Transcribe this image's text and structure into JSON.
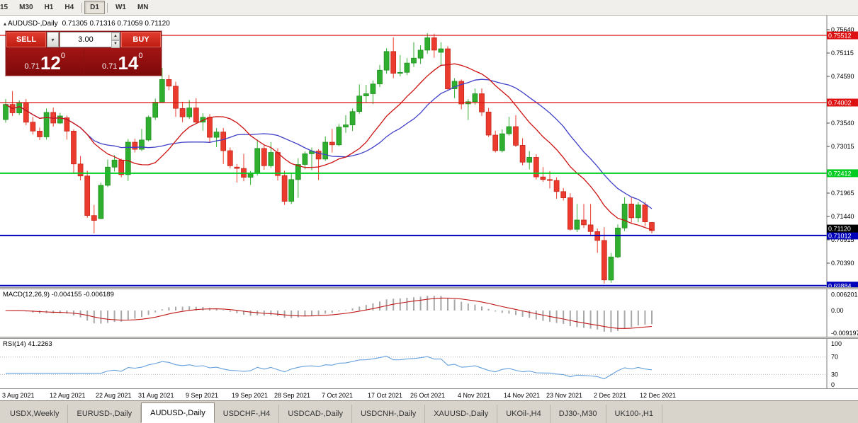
{
  "toolbar": {
    "timeframes": [
      {
        "label": "15"
      },
      {
        "label": "M30"
      },
      {
        "label": "H1"
      },
      {
        "label": "H4",
        "sep_after": true
      },
      {
        "label": "D1",
        "active": true,
        "sep_after": true
      },
      {
        "label": "W1"
      },
      {
        "label": "MN"
      }
    ]
  },
  "chart": {
    "title": "AUDUSD-,Daily",
    "ohlc_text": "0.71305 0.71316 0.71059 0.71120"
  },
  "trade_panel": {
    "sell_label": "SELL",
    "buy_label": "BUY",
    "volume": "3.00",
    "sell_price": {
      "prefix": "0.71",
      "big": "12",
      "sup": "0"
    },
    "buy_price": {
      "prefix": "0.71",
      "big": "14",
      "sup": "0"
    }
  },
  "macd": {
    "label": "MACD(12,26,9) -0.004155 -0.006189",
    "axis": [
      "0.006201",
      "0.00",
      "-0.009197"
    ]
  },
  "rsi": {
    "label": "RSI(14) 41.2263",
    "axis": [
      100,
      70,
      30,
      0
    ],
    "levels": [
      70,
      30
    ]
  },
  "date_axis": [
    {
      "label": "3 Aug 2021",
      "i": 0
    },
    {
      "label": "12 Aug 2021",
      "i": 7
    },
    {
      "label": "22 Aug 2021",
      "i": 13.7
    },
    {
      "label": "31 Aug 2021",
      "i": 20
    },
    {
      "label": "9 Sep 2021",
      "i": 27
    },
    {
      "label": "19 Sep 2021",
      "i": 33.7
    },
    {
      "label": "28 Sep 2021",
      "i": 40
    },
    {
      "label": "7 Oct 2021",
      "i": 47
    },
    {
      "label": "17 Oct 2021",
      "i": 53.7
    },
    {
      "label": "26 Oct 2021",
      "i": 60
    },
    {
      "label": "4 Nov 2021",
      "i": 67
    },
    {
      "label": "14 Nov 2021",
      "i": 73.7
    },
    {
      "label": "23 Nov 2021",
      "i": 80
    },
    {
      "label": "2 Dec 2021",
      "i": 87
    },
    {
      "label": "12 Dec 2021",
      "i": 93.7
    }
  ],
  "tabs": [
    {
      "label": "USDX,Weekly"
    },
    {
      "label": "EURUSD-,Daily"
    },
    {
      "label": "AUDUSD-,Daily",
      "active": true
    },
    {
      "label": "USDCHF-,H4"
    },
    {
      "label": "USDCAD-,Daily"
    },
    {
      "label": "USDCNH-,Daily"
    },
    {
      "label": "XAUUSD-,Daily"
    },
    {
      "label": "UKOil-,H4"
    },
    {
      "label": "DJ30-,M30"
    },
    {
      "label": "UK100-,H1"
    }
  ],
  "colors": {
    "bull": "#2fae2f",
    "bull_stroke": "#1d8a1d",
    "bear": "#ea3b2e",
    "bear_stroke": "#c02114",
    "ma_fast": "#cc1111",
    "ma_slow": "#4040c8",
    "macd_hist": "#a8a8a8",
    "macd_signal": "#c01818",
    "rsi": "#64a0dc",
    "hline_red": "#dd1111",
    "hline_green": "#00cc22",
    "hline_blue": "#0000bb"
  },
  "chart_data": {
    "type": "candlestick",
    "symbol": "AUDUSD-",
    "timeframe": "Daily",
    "last_ohlc": {
      "open": 0.71305,
      "high": 0.71316,
      "low": 0.71059,
      "close": 0.7112
    },
    "current_price": 0.7112,
    "y_ticks": [
      0.7564,
      0.75115,
      0.7459,
      0.7354,
      0.73015,
      0.71965,
      0.7144,
      0.70915,
      0.7039
    ],
    "hlines": [
      {
        "price": 0.75512,
        "color": "#dd1111",
        "width": 1.3
      },
      {
        "price": 0.74002,
        "color": "#dd1111",
        "width": 1.3
      },
      {
        "price": 0.72412,
        "color": "#00cc22",
        "width": 2
      },
      {
        "price": 0.71012,
        "color": "#0000bb",
        "width": 2
      },
      {
        "price": 0.69884,
        "color": "#0000bb",
        "width": 2
      }
    ],
    "indicators": {
      "ma_fast": "red MA",
      "ma_slow": "blue MA",
      "macd": "12,26,9",
      "rsi": 14
    },
    "ohlc": [
      [
        0.7362,
        0.7408,
        0.7355,
        0.7396
      ],
      [
        0.7396,
        0.7426,
        0.737,
        0.7377
      ],
      [
        0.7377,
        0.7405,
        0.7372,
        0.74
      ],
      [
        0.74,
        0.7408,
        0.7349,
        0.7356
      ],
      [
        0.7356,
        0.7368,
        0.7328,
        0.7336
      ],
      [
        0.7336,
        0.7344,
        0.7316,
        0.7323
      ],
      [
        0.7323,
        0.7387,
        0.7317,
        0.7378
      ],
      [
        0.7378,
        0.7389,
        0.7346,
        0.7354
      ],
      [
        0.7354,
        0.7377,
        0.7352,
        0.737
      ],
      [
        0.7366,
        0.7371,
        0.7317,
        0.7336
      ],
      [
        0.7336,
        0.734,
        0.724,
        0.7262
      ],
      [
        0.7262,
        0.728,
        0.7225,
        0.7235
      ],
      [
        0.7235,
        0.7247,
        0.7141,
        0.7146
      ],
      [
        0.7146,
        0.717,
        0.7106,
        0.7135
      ],
      [
        0.7139,
        0.722,
        0.7138,
        0.7214
      ],
      [
        0.7214,
        0.7272,
        0.721,
        0.7255
      ],
      [
        0.7255,
        0.7282,
        0.7245,
        0.7271
      ],
      [
        0.7271,
        0.7274,
        0.7232,
        0.7238
      ],
      [
        0.7238,
        0.7318,
        0.7224,
        0.7311
      ],
      [
        0.7311,
        0.7319,
        0.7288,
        0.7295
      ],
      [
        0.7295,
        0.7341,
        0.7291,
        0.7316
      ],
      [
        0.7316,
        0.7371,
        0.7313,
        0.7367
      ],
      [
        0.7367,
        0.7409,
        0.7361,
        0.7401
      ],
      [
        0.7401,
        0.7478,
        0.7399,
        0.7452
      ],
      [
        0.7452,
        0.7462,
        0.7428,
        0.7437
      ],
      [
        0.7437,
        0.7447,
        0.7368,
        0.7387
      ],
      [
        0.7387,
        0.7402,
        0.7356,
        0.7368
      ],
      [
        0.7368,
        0.7406,
        0.7363,
        0.7388
      ],
      [
        0.7388,
        0.741,
        0.7354,
        0.7356
      ],
      [
        0.7356,
        0.7376,
        0.7337,
        0.7367
      ],
      [
        0.7367,
        0.7374,
        0.731,
        0.7322
      ],
      [
        0.7322,
        0.7343,
        0.73,
        0.7334
      ],
      [
        0.7334,
        0.7343,
        0.7262,
        0.7292
      ],
      [
        0.7292,
        0.7299,
        0.7252,
        0.7258
      ],
      [
        0.7255,
        0.7262,
        0.722,
        0.7252
      ],
      [
        0.7252,
        0.7285,
        0.7223,
        0.7232
      ],
      [
        0.7232,
        0.7246,
        0.7215,
        0.7242
      ],
      [
        0.7242,
        0.7317,
        0.7236,
        0.7297
      ],
      [
        0.7297,
        0.7304,
        0.7249,
        0.7258
      ],
      [
        0.7258,
        0.7311,
        0.7253,
        0.7288
      ],
      [
        0.7288,
        0.7297,
        0.7225,
        0.7236
      ],
      [
        0.7236,
        0.7247,
        0.717,
        0.7178
      ],
      [
        0.7178,
        0.7241,
        0.7172,
        0.7227
      ],
      [
        0.7227,
        0.7275,
        0.7186,
        0.7261
      ],
      [
        0.7261,
        0.729,
        0.725,
        0.7285
      ],
      [
        0.7285,
        0.7299,
        0.7248,
        0.7291
      ],
      [
        0.7291,
        0.7295,
        0.7226,
        0.7273
      ],
      [
        0.7273,
        0.7324,
        0.7269,
        0.7311
      ],
      [
        0.7311,
        0.7341,
        0.7288,
        0.7305
      ],
      [
        0.7305,
        0.7352,
        0.7302,
        0.7345
      ],
      [
        0.7345,
        0.7372,
        0.7332,
        0.735
      ],
      [
        0.735,
        0.7387,
        0.7336,
        0.738
      ],
      [
        0.738,
        0.7441,
        0.7375,
        0.7415
      ],
      [
        0.7415,
        0.744,
        0.74,
        0.742
      ],
      [
        0.742,
        0.745,
        0.7397,
        0.7442
      ],
      [
        0.7442,
        0.7485,
        0.7435,
        0.7473
      ],
      [
        0.7473,
        0.7522,
        0.7465,
        0.7515
      ],
      [
        0.7515,
        0.7547,
        0.7455,
        0.7466
      ],
      [
        0.7466,
        0.7507,
        0.7459,
        0.7468
      ],
      [
        0.7468,
        0.75,
        0.7462,
        0.7489
      ],
      [
        0.7489,
        0.7536,
        0.748,
        0.75
      ],
      [
        0.75,
        0.7529,
        0.7487,
        0.7518
      ],
      [
        0.7518,
        0.7556,
        0.751,
        0.7546
      ],
      [
        0.7546,
        0.7555,
        0.7501,
        0.7518
      ],
      [
        0.7513,
        0.7536,
        0.7482,
        0.7521
      ],
      [
        0.7521,
        0.7527,
        0.7427,
        0.7431
      ],
      [
        0.7431,
        0.7455,
        0.741,
        0.7448
      ],
      [
        0.7448,
        0.7452,
        0.7385,
        0.7397
      ],
      [
        0.7397,
        0.7408,
        0.7361,
        0.7402
      ],
      [
        0.7402,
        0.7432,
        0.7395,
        0.742
      ],
      [
        0.742,
        0.7432,
        0.737,
        0.7379
      ],
      [
        0.7379,
        0.7388,
        0.7323,
        0.7327
      ],
      [
        0.7327,
        0.7337,
        0.7288,
        0.7292
      ],
      [
        0.7292,
        0.734,
        0.7288,
        0.733
      ],
      [
        0.733,
        0.7368,
        0.7326,
        0.7346
      ],
      [
        0.7346,
        0.7372,
        0.73,
        0.7304
      ],
      [
        0.7304,
        0.732,
        0.7259,
        0.7266
      ],
      [
        0.7266,
        0.7291,
        0.725,
        0.7277
      ],
      [
        0.7277,
        0.7284,
        0.7227,
        0.7233
      ],
      [
        0.7233,
        0.7255,
        0.7222,
        0.7227
      ],
      [
        0.7227,
        0.7246,
        0.7207,
        0.7225
      ],
      [
        0.7225,
        0.7232,
        0.7184,
        0.72
      ],
      [
        0.72,
        0.7208,
        0.718,
        0.7186
      ],
      [
        0.7186,
        0.7196,
        0.7112,
        0.7115
      ],
      [
        0.7115,
        0.7172,
        0.7109,
        0.7136
      ],
      [
        0.7136,
        0.7172,
        0.7118,
        0.7125
      ],
      [
        0.7125,
        0.7172,
        0.71,
        0.711
      ],
      [
        0.711,
        0.7117,
        0.7062,
        0.709
      ],
      [
        0.709,
        0.712,
        0.6993,
        0.7001
      ],
      [
        0.7001,
        0.7062,
        0.6995,
        0.7053
      ],
      [
        0.7053,
        0.7126,
        0.705,
        0.7118
      ],
      [
        0.7118,
        0.7187,
        0.7111,
        0.7172
      ],
      [
        0.7172,
        0.7187,
        0.713,
        0.7141
      ],
      [
        0.7141,
        0.7176,
        0.7131,
        0.717
      ],
      [
        0.717,
        0.7177,
        0.7122,
        0.7132
      ],
      [
        0.71305,
        0.71316,
        0.71059,
        0.7112
      ]
    ]
  }
}
